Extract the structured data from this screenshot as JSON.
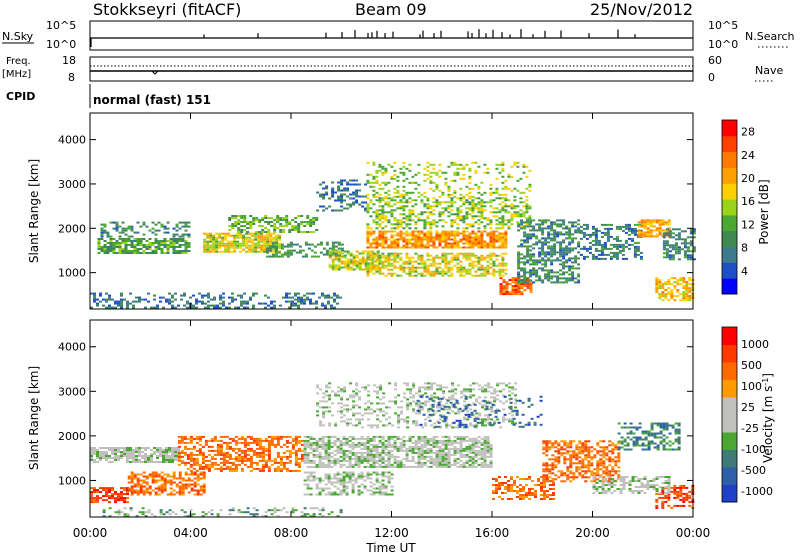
{
  "header": {
    "station": "Stokkseyri (fitACF)",
    "beam": "Beam 09",
    "date": "25/Nov/2012"
  },
  "params": {
    "nsky_label": "N.Sky",
    "nsky_top": "10^5",
    "nsky_bottom": "10^0",
    "nsearch_label": "N.Search",
    "nsearch_top": "10^5",
    "nsearch_bottom": "10^0",
    "freq_label_1": "Freq.",
    "freq_label_2": "[MHz]",
    "freq_top": "18",
    "freq_bottom": "8",
    "nave_label": "Nave",
    "nave_top": "60",
    "nave_bottom": "0",
    "cpid_label": "CPID",
    "cpid_value": "normal (fast) 151"
  },
  "colors": {
    "power": [
      "#0000ff",
      "#1f4fc4",
      "#3d7a8a",
      "#3f8a50",
      "#4aa832",
      "#9ad21c",
      "#ffd000",
      "#ffa000",
      "#ff7a00",
      "#ff4000",
      "#ff0000"
    ],
    "velocity": [
      "#2040c8",
      "#2f5fa8",
      "#3e7a7a",
      "#4aa832",
      "#c0c0bc",
      "#c0c0bc",
      "#ff9a00",
      "#ff6a00",
      "#ff3a00",
      "#ff0000"
    ],
    "ground_scatter": "#c0c0bc"
  },
  "chart_data": [
    {
      "type": "heatmap",
      "title": "",
      "xlabel": "",
      "ylabel": "Slant Range [km]",
      "xlim": [
        0,
        24
      ],
      "ylim": [
        180,
        4600
      ],
      "xticks": [
        "00:00",
        "04:00",
        "08:00",
        "12:00",
        "16:00",
        "20:00",
        "00:00"
      ],
      "yticks": [
        1000,
        2000,
        3000,
        4000
      ],
      "colorbar": {
        "label": "Power [dB]",
        "ticks": [
          4,
          8,
          12,
          16,
          20,
          24,
          28
        ],
        "range": [
          0,
          30
        ]
      },
      "regions": [
        {
          "t": [
            0.3,
            4.0
          ],
          "r": [
            1420,
            1780
          ],
          "v": 11,
          "d": 0.75
        },
        {
          "t": [
            0.3,
            4.0
          ],
          "r": [
            1800,
            2150
          ],
          "v": 8,
          "d": 0.35
        },
        {
          "t": [
            0.0,
            10.0
          ],
          "r": [
            200,
            550
          ],
          "v": 6,
          "d": 0.35
        },
        {
          "t": [
            4.5,
            7.5
          ],
          "r": [
            1450,
            1900
          ],
          "v": 17,
          "d": 0.8
        },
        {
          "t": [
            5.5,
            9.0
          ],
          "r": [
            1900,
            2300
          ],
          "v": 12,
          "d": 0.55
        },
        {
          "t": [
            7.0,
            10.0
          ],
          "r": [
            1350,
            1700
          ],
          "v": 9,
          "d": 0.5
        },
        {
          "t": [
            9.0,
            11.0
          ],
          "r": [
            2400,
            3100
          ],
          "v": 6,
          "d": 0.35
        },
        {
          "t": [
            9.5,
            11.5
          ],
          "r": [
            1050,
            1500
          ],
          "v": 16,
          "d": 0.7
        },
        {
          "t": [
            11.0,
            16.5
          ],
          "r": [
            1550,
            1950
          ],
          "v": 22,
          "d": 0.8
        },
        {
          "t": [
            11.0,
            16.5
          ],
          "r": [
            950,
            1450
          ],
          "v": 17,
          "d": 0.6
        },
        {
          "t": [
            11.0,
            17.5
          ],
          "r": [
            2000,
            2700
          ],
          "v": 14,
          "d": 0.45
        },
        {
          "t": [
            11.0,
            17.5
          ],
          "r": [
            2700,
            3500
          ],
          "v": 15,
          "d": 0.25
        },
        {
          "t": [
            16.3,
            17.5
          ],
          "r": [
            500,
            900
          ],
          "v": 26,
          "d": 0.8
        },
        {
          "t": [
            17.0,
            19.5
          ],
          "r": [
            800,
            2200
          ],
          "v": 8,
          "d": 0.55
        },
        {
          "t": [
            19.5,
            22.0
          ],
          "r": [
            1300,
            2100
          ],
          "v": 7,
          "d": 0.5
        },
        {
          "t": [
            21.8,
            23.0
          ],
          "r": [
            1800,
            2200
          ],
          "v": 21,
          "d": 0.7
        },
        {
          "t": [
            22.5,
            24.0
          ],
          "r": [
            400,
            900
          ],
          "v": 19,
          "d": 0.6
        },
        {
          "t": [
            22.8,
            24.0
          ],
          "r": [
            1300,
            2000
          ],
          "v": 8,
          "d": 0.5
        }
      ]
    },
    {
      "type": "heatmap",
      "title": "",
      "xlabel": "Time UT",
      "ylabel": "Slant Range [km]",
      "xlim": [
        0,
        24
      ],
      "ylim": [
        180,
        4600
      ],
      "xticks": [
        "00:00",
        "04:00",
        "08:00",
        "12:00",
        "16:00",
        "20:00",
        "00:00"
      ],
      "yticks": [
        1000,
        2000,
        3000,
        4000
      ],
      "colorbar": {
        "label": "Velocity [m s^-1]",
        "ticks": [
          "1000",
          "500",
          "100",
          "25",
          "-25",
          "-100",
          "-500",
          "-1000"
        ]
      },
      "regions": [
        {
          "t": [
            0.0,
            3.5
          ],
          "r": [
            1420,
            1750
          ],
          "v": 4,
          "d": 0.8
        },
        {
          "t": [
            0.0,
            1.5
          ],
          "r": [
            500,
            850
          ],
          "v": 8,
          "d": 0.7
        },
        {
          "t": [
            1.5,
            4.5
          ],
          "r": [
            700,
            1200
          ],
          "v": 7,
          "d": 0.6
        },
        {
          "t": [
            3.5,
            8.5
          ],
          "r": [
            1200,
            2000
          ],
          "v": 7,
          "d": 0.55
        },
        {
          "t": [
            0.5,
            10.0
          ],
          "r": [
            200,
            400
          ],
          "v": 3,
          "d": 0.3
        },
        {
          "t": [
            8.5,
            16.0
          ],
          "r": [
            1300,
            2000
          ],
          "v": 4,
          "d": 0.7
        },
        {
          "t": [
            9.0,
            17.0
          ],
          "r": [
            2200,
            3200
          ],
          "v": 4,
          "d": 0.3
        },
        {
          "t": [
            8.5,
            12.0
          ],
          "r": [
            700,
            1200
          ],
          "v": 4,
          "d": 0.5
        },
        {
          "t": [
            13.0,
            18.0
          ],
          "r": [
            2200,
            2900
          ],
          "v": 1,
          "d": 0.2
        },
        {
          "t": [
            16.0,
            18.5
          ],
          "r": [
            600,
            1100
          ],
          "v": 7,
          "d": 0.5
        },
        {
          "t": [
            18.0,
            21.0
          ],
          "r": [
            1000,
            1900
          ],
          "v": 7,
          "d": 0.55
        },
        {
          "t": [
            21.0,
            23.5
          ],
          "r": [
            1700,
            2300
          ],
          "v": 2,
          "d": 0.5
        },
        {
          "t": [
            22.5,
            24.0
          ],
          "r": [
            400,
            900
          ],
          "v": 8,
          "d": 0.55
        },
        {
          "t": [
            20.0,
            23.0
          ],
          "r": [
            700,
            1100
          ],
          "v": 4,
          "d": 0.5
        }
      ]
    }
  ]
}
